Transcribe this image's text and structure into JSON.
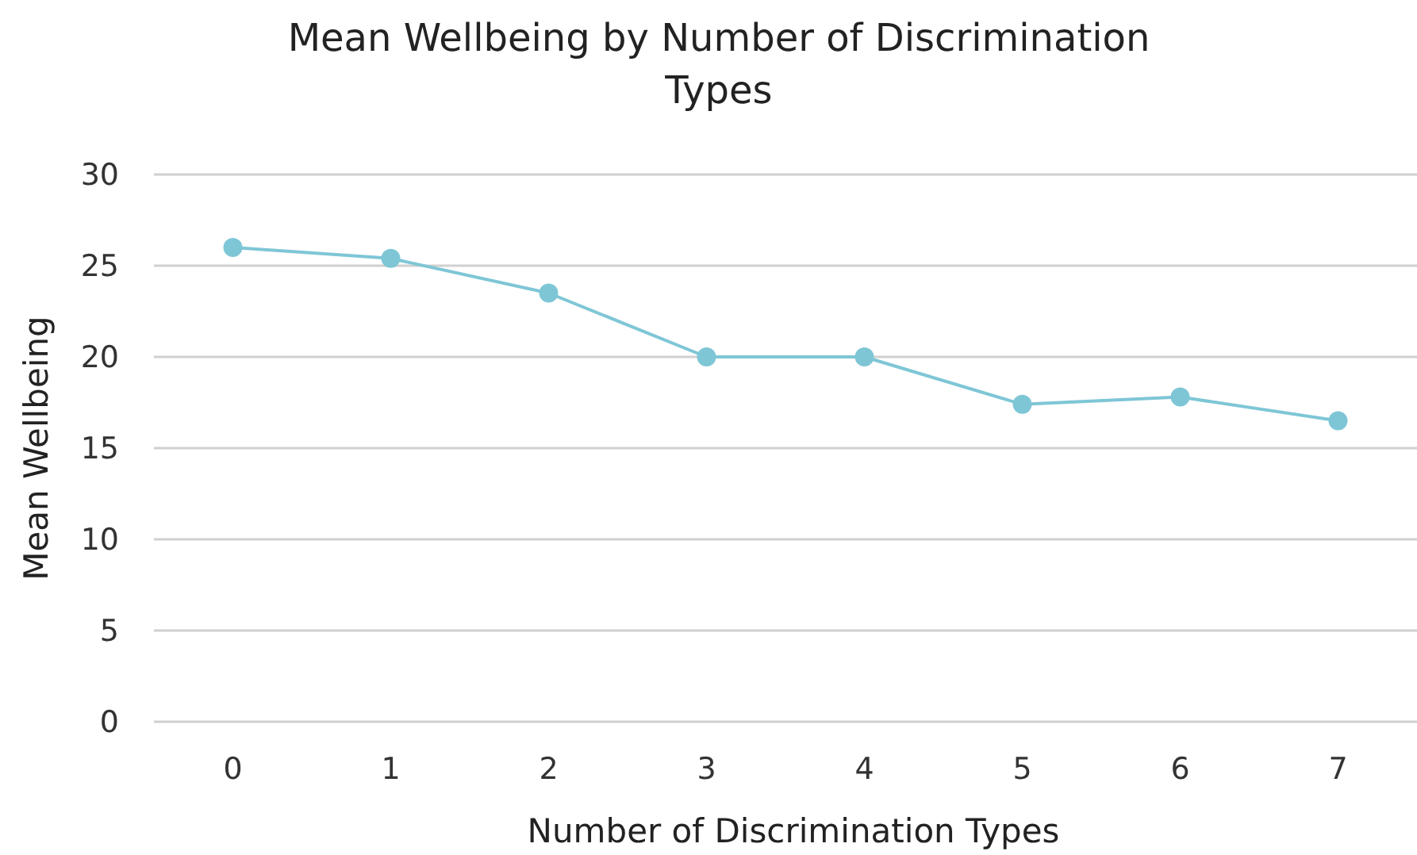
{
  "chart_data": {
    "type": "line",
    "title": "Mean Wellbeing by Number of Discrimination Types",
    "xlabel": "Number of Discrimination Types",
    "ylabel": "Mean Wellbeing",
    "categories": [
      "0",
      "1",
      "2",
      "3",
      "4",
      "5",
      "6",
      "7"
    ],
    "series": [
      {
        "color": "#7ec6d6",
        "values": [
          26,
          25.4,
          23.5,
          20,
          20,
          17.4,
          17.8,
          16.5
        ]
      }
    ],
    "ylim": [
      0,
      30
    ],
    "yticks": [
      0,
      5,
      10,
      15,
      20,
      25,
      30
    ],
    "grid": "y",
    "marker": "circle",
    "line_style": "solid"
  }
}
